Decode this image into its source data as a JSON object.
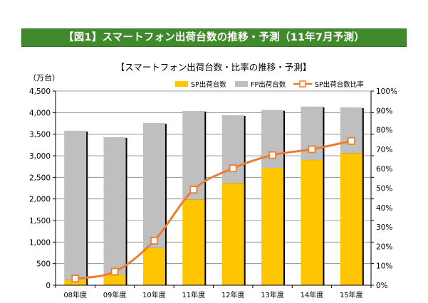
{
  "header": {
    "banner_title": "【図1】スマートフォン出荷台数の推移・予測（11年7月予測）"
  },
  "colors": {
    "sp": "#ffc600",
    "fp": "#bfbfbf",
    "ratio": "#ed7d31",
    "banner": "#3f8a2a"
  },
  "chart_data": {
    "type": "bar",
    "title": "【スマートフォン出荷台数・比率の推移・予測】",
    "ylabel": "（万台）",
    "categories": [
      "08年度",
      "09年度",
      "10年度",
      "11年度",
      "12年度",
      "13年度",
      "14年度",
      "15年度"
    ],
    "stacked": true,
    "ylim": [
      0,
      4500
    ],
    "y_ticks": [
      "0",
      "500",
      "1,000",
      "1,500",
      "2,000",
      "2,500",
      "3,000",
      "3,500",
      "4,000",
      "4,500"
    ],
    "y2lim": [
      0,
      100
    ],
    "y2_ticks": [
      "0%",
      "10%",
      "20%",
      "30%",
      "40%",
      "50%",
      "60%",
      "70%",
      "80%",
      "90%",
      "100%"
    ],
    "grid": true,
    "legend_position": "top-right",
    "series": [
      {
        "name": "SP出荷台数",
        "type": "bar",
        "values": [
          120,
          240,
          860,
          1990,
          2370,
          2720,
          2900,
          3060
        ]
      },
      {
        "name": "FP出荷台数",
        "type": "bar",
        "values": [
          3460,
          3190,
          2900,
          2050,
          1570,
          1340,
          1240,
          1060
        ]
      },
      {
        "name": "SP出荷台数比率",
        "type": "line",
        "axis": "right",
        "values": [
          3.4,
          7.0,
          22.9,
          49.2,
          60.2,
          67.0,
          70.0,
          74.3
        ]
      }
    ]
  }
}
